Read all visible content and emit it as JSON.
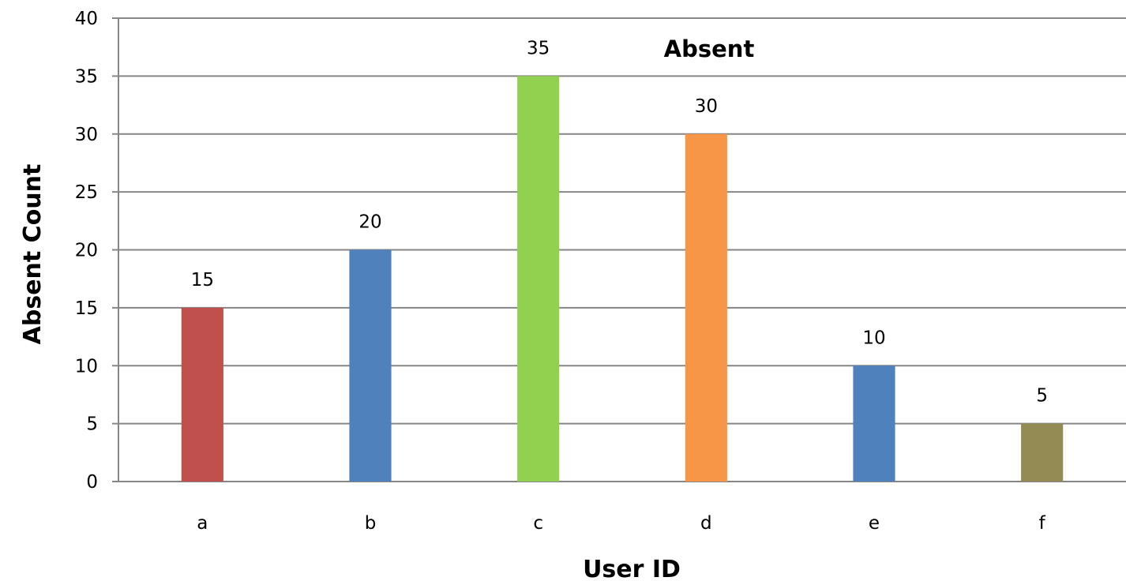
{
  "chart_data": {
    "type": "bar",
    "title": "Absent",
    "xlabel": "User ID",
    "ylabel": "Absent Count",
    "categories": [
      "a",
      "b",
      "c",
      "d",
      "e",
      "f"
    ],
    "values": [
      15,
      20,
      35,
      30,
      10,
      5
    ],
    "value_labels": [
      "15",
      "20",
      "35",
      "30",
      "10",
      "5"
    ],
    "bar_colors": [
      "#c0504d",
      "#4f81bd",
      "#92d050",
      "#f79646",
      "#4f81bd",
      "#948a54"
    ],
    "ylim": [
      0,
      40
    ],
    "yticks": [
      0,
      5,
      10,
      15,
      20,
      25,
      30,
      35,
      40
    ],
    "ytick_labels": [
      "0",
      "5",
      "10",
      "15",
      "20",
      "25",
      "30",
      "35",
      "40"
    ],
    "grid": true,
    "legend": "none",
    "gridline_color": "#868686"
  }
}
